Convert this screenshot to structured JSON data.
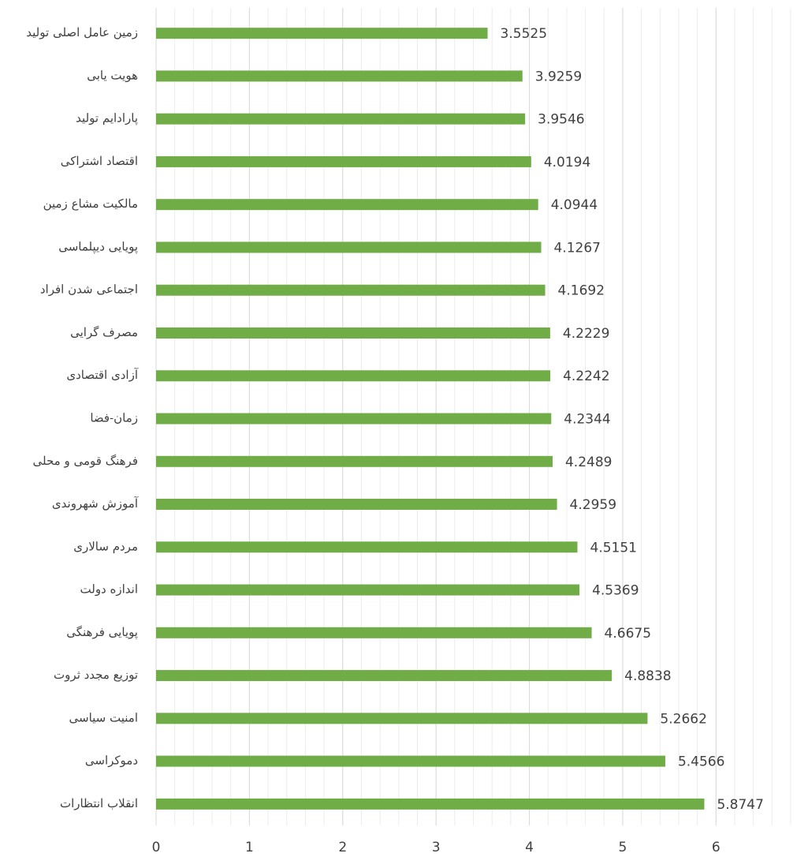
{
  "chart_data": {
    "type": "hbar",
    "categories": [
      "زمین عامل اصلی تولید",
      "هویت یابی",
      "پارادایم تولید",
      "اقتصاد اشتراکی",
      "مالکیت مشاع زمین",
      "پویایی دیپلماسی",
      "اجتماعی شدن افراد",
      "مصرف گرایی",
      "آزادی اقتصادی",
      "زمان-فضا",
      "فرهنگ قومی و محلی",
      "آموزش شهروندی",
      "مردم سالاری",
      "اندازه دولت",
      "پویایی فرهنگی",
      "توزیع مجدد ثروت",
      "امنیت سیاسی",
      "دموکراسی",
      "انقلاب انتظارات"
    ],
    "values": [
      3.5525,
      3.9259,
      3.9546,
      4.0194,
      4.0944,
      4.1267,
      4.1692,
      4.2229,
      4.2242,
      4.2344,
      4.2489,
      4.2959,
      4.5151,
      4.5369,
      4.6675,
      4.8838,
      5.2662,
      5.4566,
      5.8747
    ],
    "color": "#70ad47",
    "xlim": [
      0,
      6.8
    ],
    "xticks": [
      0,
      1,
      2,
      3,
      4,
      5,
      6
    ],
    "grid": true
  }
}
